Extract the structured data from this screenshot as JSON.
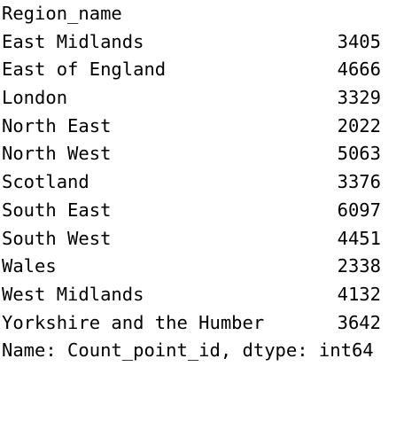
{
  "series_output": {
    "index_name": "Region_name",
    "rows": [
      {
        "label": "East Midlands",
        "value": "3405"
      },
      {
        "label": "East of England",
        "value": "4666"
      },
      {
        "label": "London",
        "value": "3329"
      },
      {
        "label": "North East",
        "value": "2022"
      },
      {
        "label": "North West",
        "value": "5063"
      },
      {
        "label": "Scotland",
        "value": "3376"
      },
      {
        "label": "South East",
        "value": "6097"
      },
      {
        "label": "South West",
        "value": "4451"
      },
      {
        "label": "Wales",
        "value": "2338"
      },
      {
        "label": "West Midlands",
        "value": "4132"
      },
      {
        "label": "Yorkshire and the Humber",
        "value": "3642"
      }
    ],
    "footer": "Name: Count_point_id, dtype: int64"
  }
}
